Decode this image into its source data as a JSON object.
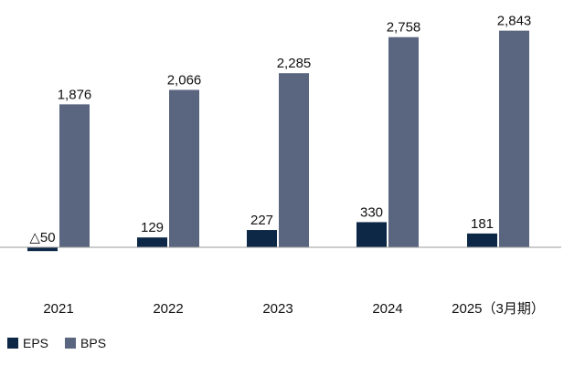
{
  "chart_data": {
    "type": "bar",
    "categories": [
      "2021",
      "2022",
      "2023",
      "2024",
      "2025（3月期）"
    ],
    "series": [
      {
        "name": "EPS",
        "values": [
          -50,
          129,
          227,
          330,
          181
        ],
        "labels": [
          "△50",
          "129",
          "227",
          "330",
          "181"
        ],
        "color": "#0d2847"
      },
      {
        "name": "BPS",
        "values": [
          1876,
          2066,
          2285,
          2758,
          2843
        ],
        "labels": [
          "1,876",
          "2,066",
          "2,285",
          "2,758",
          "2,843"
        ],
        "color": "#5a6680"
      }
    ],
    "ylim": [
      -250,
      3000
    ],
    "grid": false,
    "baseline_color": "#999999",
    "legend_position": "bottom-left"
  }
}
